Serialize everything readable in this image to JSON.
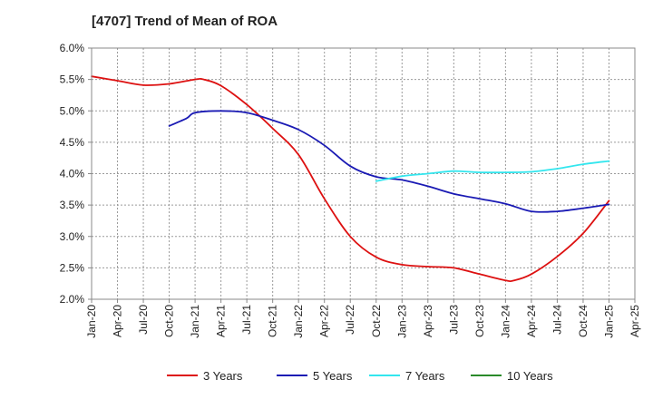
{
  "chart_data": {
    "type": "line",
    "title": "[4707]  Trend of Mean of ROA",
    "xlabel": "",
    "ylabel": "",
    "ylim": [
      2.0,
      6.0
    ],
    "y_ticks": [
      "2.0%",
      "2.5%",
      "3.0%",
      "3.5%",
      "4.0%",
      "4.5%",
      "5.0%",
      "5.5%",
      "6.0%"
    ],
    "x_ticks": [
      "Jan-20",
      "Apr-20",
      "Jul-20",
      "Oct-20",
      "Jan-21",
      "Apr-21",
      "Jul-21",
      "Oct-21",
      "Jan-22",
      "Apr-22",
      "Jul-22",
      "Oct-22",
      "Jan-23",
      "Apr-23",
      "Jul-23",
      "Oct-23",
      "Jan-24",
      "Apr-24",
      "Jul-24",
      "Oct-24",
      "Jan-25",
      "Apr-25"
    ],
    "grid": true,
    "legend_position": "bottom",
    "series": [
      {
        "name": "3 Years",
        "color": "#dd1111",
        "x": [
          "Jan-20",
          "Apr-20",
          "Jul-20",
          "Oct-20",
          "Jan-21",
          "Feb-21",
          "Apr-21",
          "Jul-21",
          "Oct-21",
          "Jan-22",
          "Apr-22",
          "Jul-22",
          "Oct-22",
          "Jan-23",
          "Apr-23",
          "Jul-23",
          "Oct-23",
          "Jan-24",
          "Feb-24",
          "Apr-24",
          "Jul-24",
          "Oct-24",
          "Jan-25"
        ],
        "values": [
          5.55,
          5.48,
          5.41,
          5.43,
          5.5,
          5.5,
          5.4,
          5.1,
          4.72,
          4.3,
          3.6,
          3.0,
          2.67,
          2.55,
          2.52,
          2.5,
          2.4,
          2.3,
          2.3,
          2.4,
          2.68,
          3.05,
          3.57
        ]
      },
      {
        "name": "5 Years",
        "color": "#1a1ab4",
        "x": [
          "Oct-20",
          "Dec-20",
          "Jan-21",
          "Apr-21",
          "Jul-21",
          "Oct-21",
          "Jan-22",
          "Apr-22",
          "Jul-22",
          "Oct-22",
          "Jan-23",
          "Apr-23",
          "Jul-23",
          "Oct-23",
          "Jan-24",
          "Apr-24",
          "Jul-24",
          "Oct-24",
          "Jan-25"
        ],
        "values": [
          4.76,
          4.88,
          4.97,
          5.0,
          4.97,
          4.85,
          4.7,
          4.45,
          4.12,
          3.95,
          3.9,
          3.8,
          3.68,
          3.6,
          3.52,
          3.4,
          3.4,
          3.45,
          3.51
        ]
      },
      {
        "name": "7 Years",
        "color": "#33e6ee",
        "x": [
          "Oct-22",
          "Jan-23",
          "Apr-23",
          "Jul-23",
          "Oct-23",
          "Jan-24",
          "Apr-24",
          "Jul-24",
          "Oct-24",
          "Jan-25"
        ],
        "values": [
          3.88,
          3.96,
          4.0,
          4.04,
          4.02,
          4.02,
          4.03,
          4.08,
          4.15,
          4.2
        ]
      },
      {
        "name": "10 Years",
        "color": "#2a8a2a",
        "x": [],
        "values": []
      }
    ]
  }
}
